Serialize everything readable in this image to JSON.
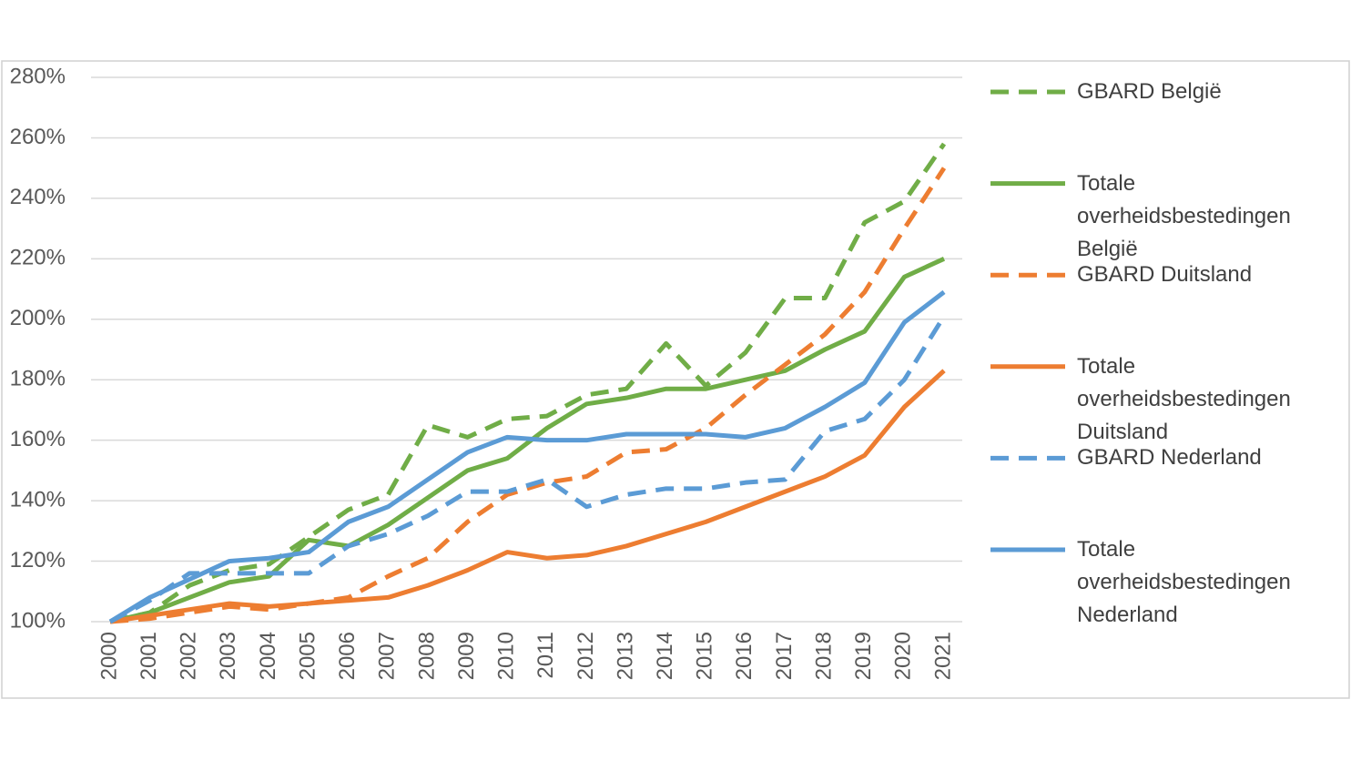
{
  "chart_data": {
    "type": "line",
    "categories": [
      "2000",
      "2001",
      "2002",
      "2003",
      "2004",
      "2005",
      "2006",
      "2007",
      "2008",
      "2009",
      "2010",
      "2011",
      "2012",
      "2013",
      "2014",
      "2015",
      "2016",
      "2017",
      "2018",
      "2019",
      "2020",
      "2021"
    ],
    "series": [
      {
        "name": "GBARD België",
        "color": "#70ad47",
        "style": "dashed",
        "values": [
          100,
          103,
          112,
          117,
          119,
          128,
          137,
          142,
          165,
          161,
          167,
          168,
          175,
          177,
          192,
          178,
          189,
          207,
          207,
          232,
          239,
          258
        ]
      },
      {
        "name": "Totale overheidsbestedingen België",
        "color": "#70ad47",
        "style": "solid",
        "values": [
          100,
          103,
          108,
          113,
          115,
          127,
          125,
          132,
          141,
          150,
          154,
          164,
          172,
          174,
          177,
          177,
          180,
          183,
          190,
          196,
          214,
          220
        ]
      },
      {
        "name": "GBARD Duitsland",
        "color": "#ed7d31",
        "style": "dashed",
        "values": [
          100,
          101,
          103,
          105,
          104,
          106,
          108,
          115,
          121,
          133,
          142,
          146,
          148,
          156,
          157,
          164,
          175,
          185,
          195,
          209,
          230,
          250
        ]
      },
      {
        "name": "Totale overheidsbestedingen Duitsland",
        "color": "#ed7d31",
        "style": "solid",
        "values": [
          100,
          102,
          104,
          106,
          105,
          106,
          107,
          108,
          112,
          117,
          123,
          121,
          122,
          125,
          129,
          133,
          138,
          143,
          148,
          155,
          171,
          183
        ]
      },
      {
        "name": "GBARD Nederland",
        "color": "#5b9bd5",
        "style": "dashed",
        "values": [
          100,
          107,
          116,
          116,
          116,
          116,
          125,
          129,
          135,
          143,
          143,
          147,
          138,
          142,
          144,
          144,
          146,
          147,
          163,
          167,
          180,
          201
        ]
      },
      {
        "name": "Totale overheidsbestedingen Nederland",
        "color": "#5b9bd5",
        "style": "solid",
        "values": [
          100,
          108,
          114,
          120,
          121,
          123,
          133,
          138,
          147,
          156,
          161,
          160,
          160,
          162,
          162,
          162,
          161,
          164,
          171,
          179,
          199,
          209
        ]
      }
    ],
    "ylim": [
      100,
      280
    ],
    "yticks": [
      {
        "value": 100,
        "label": "100%"
      },
      {
        "value": 120,
        "label": "120%"
      },
      {
        "value": 140,
        "label": "140%"
      },
      {
        "value": 160,
        "label": "160%"
      },
      {
        "value": 180,
        "label": "180%"
      },
      {
        "value": 200,
        "label": "200%"
      },
      {
        "value": 220,
        "label": "220%"
      },
      {
        "value": 240,
        "label": "240%"
      },
      {
        "value": 260,
        "label": "260%"
      },
      {
        "value": 280,
        "label": "280%"
      }
    ],
    "grid": true,
    "legend": "right"
  }
}
